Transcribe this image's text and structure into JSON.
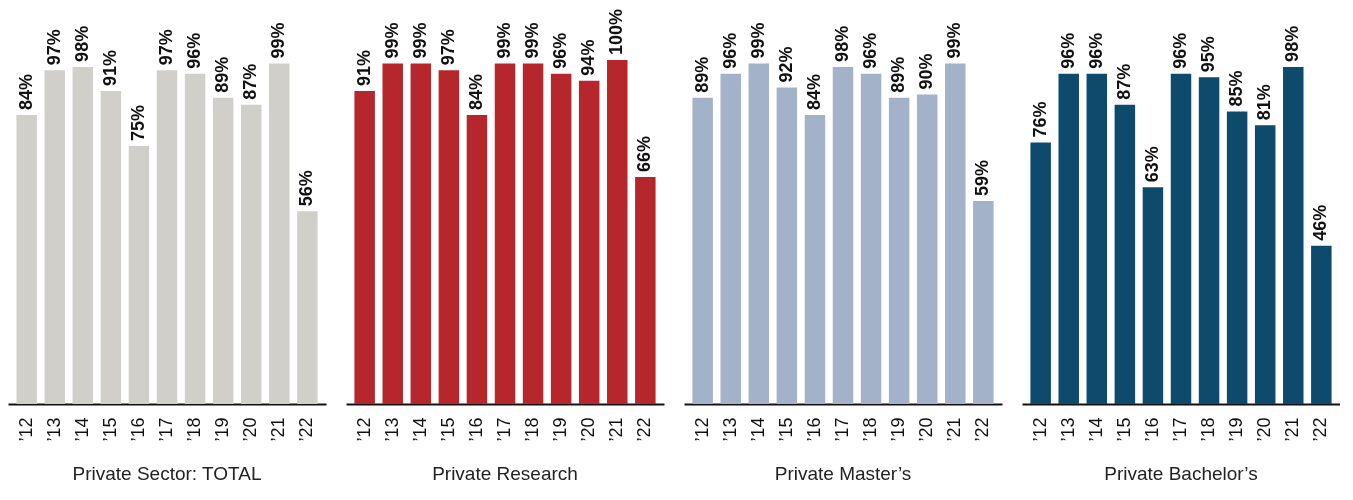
{
  "chart_data": [
    {
      "type": "bar",
      "title": "Private Sector: TOTAL",
      "categories": [
        "’12",
        "’13",
        "’14",
        "’15",
        "’16",
        "’17",
        "’18",
        "’19",
        "’20",
        "’21",
        "’22"
      ],
      "values": [
        84,
        97,
        98,
        91,
        75,
        97,
        96,
        89,
        87,
        99,
        56
      ],
      "value_labels": [
        "84%",
        "97%",
        "98%",
        "91%",
        "75%",
        "97%",
        "96%",
        "89%",
        "87%",
        "99%",
        "56%"
      ],
      "color": "#d0cfca",
      "tick_labels": "x"
    },
    {
      "type": "bar",
      "title": "Private Research",
      "categories": [
        "’12",
        "’13",
        "’14",
        "’15",
        "’16",
        "’17",
        "’18",
        "’19",
        "’20",
        "’21",
        "’22"
      ],
      "values": [
        91,
        99,
        99,
        97,
        84,
        99,
        99,
        96,
        94,
        100,
        66
      ],
      "value_labels": [
        "91%",
        "99%",
        "99%",
        "97%",
        "84%",
        "99%",
        "99%",
        "96%",
        "94%",
        "100%",
        "66%"
      ],
      "color": "#b5272d",
      "tick_labels": "x"
    },
    {
      "type": "bar",
      "title": "Private Master’s",
      "categories": [
        "’12",
        "’13",
        "’14",
        "’15",
        "’16",
        "’17",
        "’18",
        "’19",
        "’20",
        "’21",
        "’22"
      ],
      "values": [
        89,
        96,
        99,
        92,
        84,
        98,
        96,
        89,
        90,
        99,
        59
      ],
      "value_labels": [
        "89%",
        "96%",
        "99%",
        "92%",
        "84%",
        "98%",
        "96%",
        "89%",
        "90%",
        "99%",
        "59%"
      ],
      "color": "#a3b2c9",
      "tick_labels": "x"
    },
    {
      "type": "bar",
      "title": "Private Bachelor’s",
      "categories": [
        "’12",
        "’13",
        "’14",
        "’15",
        "’16",
        "’17",
        "’18",
        "’19",
        "’20",
        "’21",
        "’22"
      ],
      "values": [
        76,
        96,
        96,
        87,
        63,
        96,
        95,
        85,
        81,
        98,
        46
      ],
      "value_labels": [
        "76%",
        "96%",
        "96%",
        "87%",
        "63%",
        "96%",
        "95%",
        "85%",
        "81%",
        "98%",
        "46%"
      ],
      "color": "#0d4a6b",
      "tick_labels": "x"
    }
  ]
}
